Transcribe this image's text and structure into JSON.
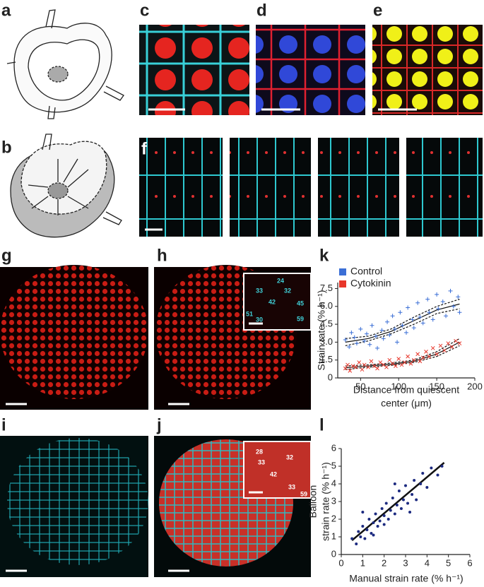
{
  "panel_labels": [
    "a",
    "b",
    "c",
    "d",
    "e",
    "f",
    "g",
    "h",
    "i",
    "j",
    "k",
    "l"
  ],
  "inset_h": [
    "24",
    "32",
    "33",
    "42",
    "45",
    "51",
    "30",
    "59"
  ],
  "inset_j": [
    "28",
    "32",
    "33",
    "42",
    "33",
    "59"
  ],
  "chart_data": [
    {
      "type": "scatter",
      "y_label": "Strain rate (% h⁻¹)",
      "x_label": [
        "Distance from quiescent",
        "center (μm)"
      ],
      "xlim": [
        20,
        200
      ],
      "ylim": [
        0,
        8
      ],
      "xticks": [
        50,
        100,
        150,
        200
      ],
      "yticks": [
        0,
        1.5,
        {
          "value": 3,
          "label": "3.0"
        },
        4.5,
        {
          "value": 6,
          "label": "6.0"
        },
        7.5
      ],
      "legend": "top-left",
      "series": [
        {
          "name": "Control",
          "color": "#3b6fd6",
          "marker": "plus",
          "x": [
            30,
            35,
            38,
            42,
            45,
            50,
            55,
            58,
            62,
            65,
            70,
            72,
            78,
            80,
            85,
            88,
            92,
            95,
            98,
            102,
            105,
            110,
            112,
            118,
            120,
            125,
            128,
            132,
            138,
            140,
            145,
            150,
            152,
            158,
            162,
            168,
            172,
            178,
            180
          ],
          "values": [
            3.2,
            2.6,
            3.8,
            3.4,
            2.9,
            4.1,
            3.1,
            3.7,
            2.8,
            4.4,
            3.5,
            2.5,
            4.0,
            3.3,
            4.7,
            3.6,
            5.2,
            4.1,
            3.0,
            5.5,
            4.4,
            3.8,
            5.9,
            4.9,
            4.2,
            6.3,
            5.1,
            4.6,
            6.6,
            5.5,
            4.9,
            7.0,
            5.8,
            6.4,
            5.2,
            7.3,
            6.0,
            6.8,
            5.5
          ]
        },
        {
          "name": "Cytokinin",
          "color": "#e8372b",
          "marker": "cross",
          "x": [
            30,
            33,
            36,
            40,
            44,
            48,
            52,
            55,
            60,
            64,
            68,
            72,
            76,
            80,
            84,
            88,
            92,
            96,
            100,
            104,
            108,
            112,
            116,
            120,
            125,
            128,
            132,
            136,
            140,
            145,
            150,
            155,
            160,
            165,
            170,
            175,
            180
          ],
          "values": [
            0.8,
            1.1,
            0.6,
            1.0,
            0.9,
            1.3,
            0.7,
            1.1,
            0.9,
            1.4,
            1.0,
            0.8,
            1.3,
            1.1,
            0.9,
            1.5,
            1.2,
            1.0,
            1.6,
            1.1,
            1.3,
            1.8,
            1.2,
            1.5,
            2.0,
            1.4,
            1.7,
            2.2,
            1.8,
            2.5,
            2.0,
            2.7,
            2.3,
            2.9,
            2.6,
            3.1,
            2.9
          ]
        }
      ],
      "fits": [
        {
          "dashed": false,
          "x": [
            30,
            60,
            90,
            120,
            150,
            180
          ],
          "values": [
            3.0,
            3.3,
            3.9,
            4.8,
            5.7,
            6.2
          ]
        },
        {
          "dashed": true,
          "x": [
            30,
            60,
            90,
            120,
            150,
            180
          ],
          "values": [
            3.3,
            3.5,
            4.1,
            5.1,
            6.0,
            6.6
          ]
        },
        {
          "dashed": true,
          "x": [
            30,
            60,
            90,
            120,
            150,
            180
          ],
          "values": [
            2.7,
            3.1,
            3.7,
            4.5,
            5.4,
            5.8
          ]
        },
        {
          "dashed": false,
          "x": [
            30,
            60,
            90,
            120,
            150,
            180
          ],
          "values": [
            0.85,
            1.0,
            1.15,
            1.4,
            2.0,
            3.0
          ]
        },
        {
          "dashed": true,
          "x": [
            30,
            60,
            90,
            120,
            150,
            180
          ],
          "values": [
            1.0,
            1.1,
            1.25,
            1.5,
            2.2,
            3.3
          ]
        },
        {
          "dashed": true,
          "x": [
            30,
            60,
            90,
            120,
            150,
            180
          ],
          "values": [
            0.7,
            0.9,
            1.05,
            1.3,
            1.8,
            2.7
          ]
        }
      ]
    },
    {
      "type": "scatter",
      "y_label": [
        "Balloon",
        "strain rate (% h⁻¹)"
      ],
      "x_label": [
        "Manual strain rate (% h⁻¹)"
      ],
      "xlim": [
        0,
        6
      ],
      "ylim": [
        0,
        6
      ],
      "xticks": [
        0,
        1,
        2,
        3,
        4,
        5,
        6
      ],
      "yticks": [
        0,
        1,
        2,
        3,
        4,
        5,
        6
      ],
      "series": [
        {
          "color": "#1c2a80",
          "marker": "dot",
          "x": [
            0.5,
            0.7,
            0.8,
            0.9,
            1.0,
            1.1,
            1.2,
            1.3,
            1.4,
            1.5,
            1.5,
            1.6,
            1.7,
            1.8,
            1.9,
            2.0,
            2.0,
            2.1,
            2.2,
            2.3,
            2.4,
            2.5,
            2.6,
            2.7,
            2.8,
            2.9,
            3.0,
            3.1,
            3.3,
            3.4,
            3.5,
            3.7,
            3.8,
            4.0,
            4.2,
            4.5,
            4.7,
            1.0,
            2.5,
            3.2
          ],
          "values": [
            0.9,
            0.6,
            1.3,
            1.0,
            1.6,
            0.9,
            1.4,
            2.0,
            1.2,
            1.8,
            1.1,
            2.3,
            1.6,
            1.9,
            2.6,
            1.7,
            2.2,
            2.9,
            2.0,
            2.5,
            3.2,
            2.3,
            2.8,
            3.6,
            2.6,
            3.1,
            3.9,
            2.9,
            3.4,
            4.2,
            3.1,
            4.0,
            4.6,
            3.8,
            4.9,
            4.5,
            5.0,
            2.4,
            4.0,
            2.4
          ]
        }
      ],
      "fits": [
        {
          "dashed": false,
          "x": [
            0.5,
            4.8
          ],
          "values": [
            0.8,
            5.2
          ]
        }
      ]
    }
  ]
}
